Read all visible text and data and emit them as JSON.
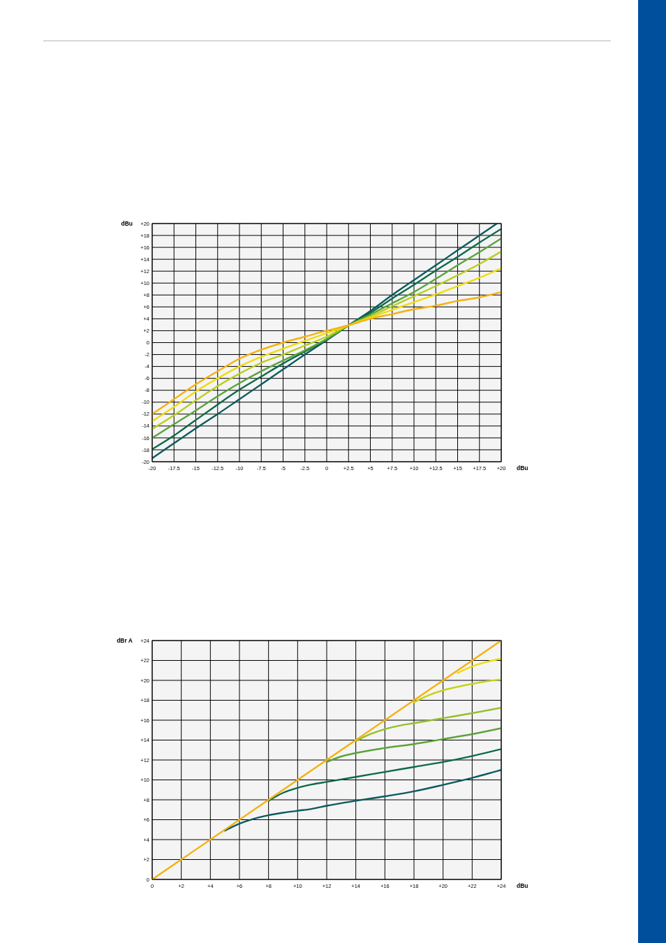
{
  "chart_data": [
    {
      "type": "line",
      "xlabel": "dBu",
      "ylabel": "dBu",
      "xlim": [
        -20,
        20
      ],
      "ylim": [
        -20,
        20
      ],
      "xticks": [
        -20,
        -17.5,
        -15,
        -12.5,
        -10,
        -7.5,
        -5,
        -2.5,
        0,
        {
          "value": 2.5,
          "label": "+2.5"
        },
        {
          "value": 5,
          "label": "+5"
        },
        {
          "value": 7.5,
          "label": "+7.5"
        },
        {
          "value": 10,
          "label": "+10"
        },
        {
          "value": 12.5,
          "label": "+12.5"
        },
        {
          "value": 15,
          "label": "+15"
        },
        {
          "value": 17.5,
          "label": "+17.5"
        },
        {
          "value": 20,
          "label": "+20"
        }
      ],
      "yticks": [
        -20,
        -18,
        -16,
        -14,
        -12,
        -10,
        -8,
        -6,
        -4,
        -2,
        0,
        {
          "value": 2,
          "label": "+2"
        },
        {
          "value": 4,
          "label": "+4"
        },
        {
          "value": 6,
          "label": "+6"
        },
        {
          "value": 8,
          "label": "+8"
        },
        {
          "value": 10,
          "label": "+10"
        },
        {
          "value": 12,
          "label": "+12"
        },
        {
          "value": 14,
          "label": "+14"
        },
        {
          "value": 16,
          "label": "+16"
        },
        {
          "value": 18,
          "label": "+18"
        },
        {
          "value": 20,
          "label": "+20"
        }
      ],
      "grid": true,
      "line_style": "solid",
      "x": [
        -20,
        -17.5,
        -15,
        -12.5,
        -10,
        -7.5,
        -5,
        -2.5,
        0,
        2.5,
        5,
        7.5,
        10,
        12.5,
        15,
        17.5,
        20
      ],
      "series": [
        {
          "color": "#0b5a5e",
          "x": [
            -20,
            -17.5,
            -15,
            -12.5,
            -10,
            -7.5,
            -5,
            -2.5,
            0,
            2.5,
            5,
            7.5,
            10,
            12.5,
            15,
            17.5,
            19.5
          ],
          "values": [
            -19.4,
            -16.9,
            -14.4,
            -12,
            -9.5,
            -7,
            -4.5,
            -2,
            0.4,
            2.9,
            5.3,
            8,
            10.5,
            13,
            15.5,
            18,
            20
          ]
        },
        {
          "color": "#0b6a48",
          "values": [
            -17.9,
            -15.6,
            -13,
            -10.4,
            -7.9,
            -5.7,
            -3.5,
            -1.5,
            0.5,
            2.9,
            5,
            7.4,
            9.7,
            12.1,
            14.4,
            16.8,
            19.1
          ]
        },
        {
          "color": "#5ba33a",
          "values": [
            -16,
            -13.7,
            -11.4,
            -9,
            -6.8,
            -4.8,
            -3,
            -1.3,
            0.6,
            2.9,
            4.7,
            6.6,
            8.5,
            10.7,
            13,
            15.2,
            17.5
          ]
        },
        {
          "color": "#b8cf1a",
          "values": [
            -14.5,
            -12.2,
            -9.7,
            -7.3,
            -5.2,
            -3.4,
            -2,
            -0.5,
            1,
            2.9,
            4.4,
            6.1,
            7.8,
            9.5,
            11.3,
            13.2,
            15.3
          ]
        },
        {
          "color": "#f0dc0a",
          "values": [
            -13.2,
            -10.8,
            -8.2,
            -6,
            -4,
            -2.4,
            -1,
            0.3,
            1.6,
            2.9,
            4.2,
            5.5,
            6.8,
            8.1,
            9.5,
            10.9,
            12.5
          ]
        },
        {
          "color": "#f5b10f",
          "values": [
            -12,
            -9.5,
            -7,
            -4.8,
            -2.7,
            -1.2,
            0,
            1,
            2,
            2.9,
            4,
            4.8,
            5.6,
            6.2,
            7,
            7.6,
            8.5
          ]
        }
      ]
    },
    {
      "type": "line",
      "xlabel": "dBu",
      "ylabel": "dBr A",
      "xlim": [
        0,
        24
      ],
      "ylim": [
        0,
        24
      ],
      "xticks": [
        0,
        {
          "value": 2,
          "label": "+2"
        },
        {
          "value": 4,
          "label": "+4"
        },
        {
          "value": 6,
          "label": "+6"
        },
        {
          "value": 8,
          "label": "+8"
        },
        {
          "value": 10,
          "label": "+10"
        },
        {
          "value": 12,
          "label": "+12"
        },
        {
          "value": 14,
          "label": "+14"
        },
        {
          "value": 16,
          "label": "+16"
        },
        {
          "value": 18,
          "label": "+18"
        },
        {
          "value": 20,
          "label": "+20"
        },
        {
          "value": 22,
          "label": "+22"
        },
        {
          "value": 24,
          "label": "+24"
        }
      ],
      "yticks": [
        0,
        {
          "value": 2,
          "label": "+2"
        },
        {
          "value": 4,
          "label": "+4"
        },
        {
          "value": 6,
          "label": "+6"
        },
        {
          "value": 8,
          "label": "+8"
        },
        {
          "value": 10,
          "label": "+10"
        },
        {
          "value": 12,
          "label": "+12"
        },
        {
          "value": 14,
          "label": "+14"
        },
        {
          "value": 16,
          "label": "+16"
        },
        {
          "value": 18,
          "label": "+18"
        },
        {
          "value": 20,
          "label": "+20"
        },
        {
          "value": 22,
          "label": "+22"
        },
        {
          "value": 24,
          "label": "+24"
        }
      ],
      "grid": true,
      "line_style": "solid",
      "series": [
        {
          "color": "#0b5a5e",
          "x": [
            5,
            6,
            7,
            8,
            9,
            10,
            11,
            12,
            14,
            16,
            18,
            20,
            22,
            24
          ],
          "values": [
            4.9,
            5.6,
            6.1,
            6.45,
            6.7,
            6.9,
            7.1,
            7.4,
            7.9,
            8.35,
            8.85,
            9.5,
            10.2,
            11
          ]
        },
        {
          "color": "#0b6a48",
          "x": [
            8,
            9,
            10,
            11,
            12,
            14,
            16,
            18,
            20,
            22,
            24
          ],
          "values": [
            7.9,
            8.7,
            9.2,
            9.55,
            9.8,
            10.3,
            10.8,
            11.3,
            11.8,
            12.4,
            13.1
          ]
        },
        {
          "color": "#5ba33a",
          "x": [
            12,
            13,
            14,
            16,
            18,
            20,
            22,
            24
          ],
          "values": [
            11.8,
            12.35,
            12.7,
            13.2,
            13.6,
            14.1,
            14.6,
            15.2
          ]
        },
        {
          "color": "#93c02a",
          "x": [
            14,
            15,
            16,
            17,
            18,
            19,
            20,
            22,
            24
          ],
          "values": [
            13.9,
            14.6,
            15.1,
            15.45,
            15.7,
            15.95,
            16.2,
            16.7,
            17.25
          ]
        },
        {
          "color": "#c6d417",
          "x": [
            18,
            19,
            20,
            21,
            22,
            23,
            24
          ],
          "values": [
            17.8,
            18.5,
            19,
            19.35,
            19.65,
            19.9,
            20.1
          ]
        },
        {
          "color": "#f0dc0a",
          "x": [
            21,
            22,
            23,
            24
          ],
          "values": [
            20.75,
            21.4,
            21.85,
            22.2
          ]
        },
        {
          "color": "#f5b10f",
          "x": [
            0,
            24
          ],
          "values": [
            0,
            24
          ]
        }
      ]
    }
  ]
}
